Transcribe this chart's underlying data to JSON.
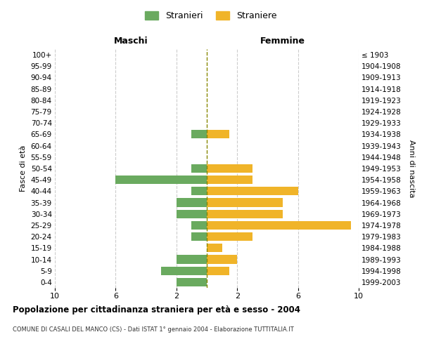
{
  "age_groups": [
    "100+",
    "95-99",
    "90-94",
    "85-89",
    "80-84",
    "75-79",
    "70-74",
    "65-69",
    "60-64",
    "55-59",
    "50-54",
    "45-49",
    "40-44",
    "35-39",
    "30-34",
    "25-29",
    "20-24",
    "15-19",
    "10-14",
    "5-9",
    "0-4"
  ],
  "birth_years": [
    "≤ 1903",
    "1904-1908",
    "1909-1913",
    "1914-1918",
    "1919-1923",
    "1924-1928",
    "1929-1933",
    "1934-1938",
    "1939-1943",
    "1944-1948",
    "1949-1953",
    "1954-1958",
    "1959-1963",
    "1964-1968",
    "1969-1973",
    "1974-1978",
    "1979-1983",
    "1984-1988",
    "1989-1993",
    "1994-1998",
    "1999-2003"
  ],
  "males": [
    0,
    0,
    0,
    0,
    0,
    0,
    0,
    1,
    0,
    0,
    1,
    6,
    1,
    2,
    2,
    1,
    1,
    0,
    2,
    3,
    2
  ],
  "females": [
    0,
    0,
    0,
    0,
    0,
    0,
    0,
    1.5,
    0,
    0,
    3,
    3,
    6,
    5,
    5,
    9.5,
    3,
    1,
    2,
    1.5,
    0
  ],
  "male_color": "#6aaa5f",
  "female_color": "#f0b429",
  "xlabel_left": "Maschi",
  "xlabel_right": "Femmine",
  "ylabel_left": "Fasce di età",
  "ylabel_right": "Anni di nascita",
  "title": "Popolazione per cittadinanza straniera per età e sesso - 2004",
  "subtitle": "COMUNE DI CASALI DEL MANCO (CS) - Dati ISTAT 1° gennaio 2004 - Elaborazione TUTTITALIA.IT",
  "legend_male": "Stranieri",
  "legend_female": "Straniere",
  "xlim": 10,
  "background_color": "#ffffff",
  "grid_color": "#cccccc"
}
